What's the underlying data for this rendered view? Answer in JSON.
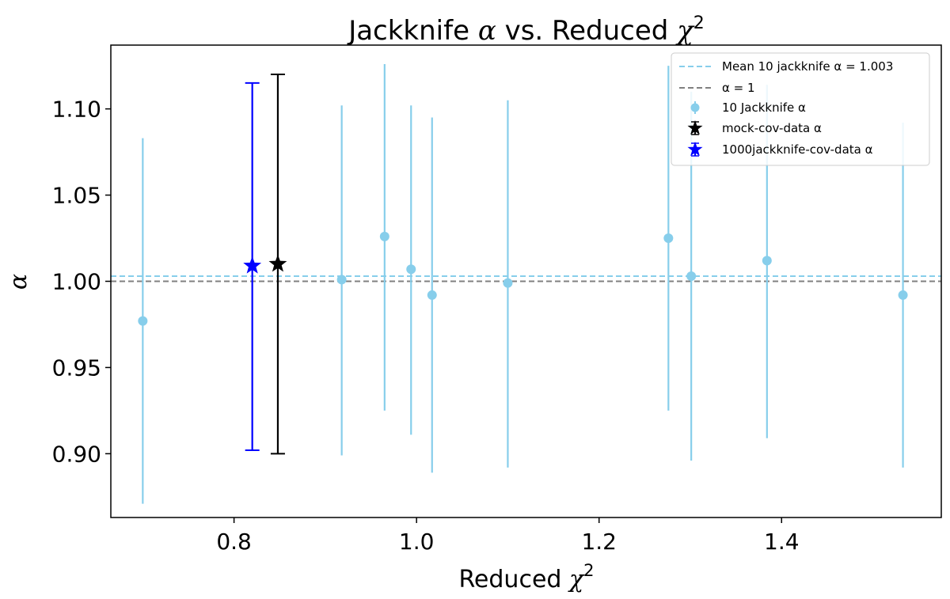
{
  "chart_data": {
    "type": "scatter",
    "title": "Jackknife α vs. Reduced χ²",
    "title_main": "Jackknife ",
    "title_alpha": "α",
    "title_mid": " vs. Reduced ",
    "title_chi": "χ",
    "title_sup": "2",
    "xlabel_main": "Reduced ",
    "xlabel_chi": "χ",
    "xlabel_sup": "2",
    "ylabel": "α",
    "xlim": [
      0.665,
      1.575
    ],
    "ylim": [
      0.863,
      1.137
    ],
    "xticks": [
      0.8,
      1.0,
      1.2,
      1.4
    ],
    "xtick_labels": [
      "0.8",
      "1.0",
      "1.2",
      "1.4"
    ],
    "yticks": [
      0.9,
      0.95,
      1.0,
      1.05,
      1.1
    ],
    "ytick_labels": [
      "0.90",
      "0.95",
      "1.00",
      "1.05",
      "1.10"
    ],
    "hlines": [
      {
        "name": "Mean 10 jackknife α = 1.003",
        "y": 1.003,
        "color": "#87ceeb",
        "dashed": true
      },
      {
        "name": "α = 1",
        "y": 1.0,
        "color": "#808080",
        "dashed": true
      }
    ],
    "series": [
      {
        "name": "10 Jackknife α",
        "color": "#87ceeb",
        "marker": "circle",
        "points": [
          {
            "x": 0.7,
            "y": 0.977,
            "lo": 0.871,
            "hi": 1.083
          },
          {
            "x": 0.918,
            "y": 1.001,
            "lo": 0.899,
            "hi": 1.102
          },
          {
            "x": 0.965,
            "y": 1.026,
            "lo": 0.925,
            "hi": 1.126
          },
          {
            "x": 0.994,
            "y": 1.007,
            "lo": 0.911,
            "hi": 1.102
          },
          {
            "x": 1.017,
            "y": 0.992,
            "lo": 0.889,
            "hi": 1.095
          },
          {
            "x": 1.1,
            "y": 0.999,
            "lo": 0.892,
            "hi": 1.105
          },
          {
            "x": 1.276,
            "y": 1.025,
            "lo": 0.925,
            "hi": 1.125
          },
          {
            "x": 1.301,
            "y": 1.003,
            "lo": 0.896,
            "hi": 1.11
          },
          {
            "x": 1.384,
            "y": 1.012,
            "lo": 0.909,
            "hi": 1.114
          },
          {
            "x": 1.533,
            "y": 0.992,
            "lo": 0.892,
            "hi": 1.092
          }
        ]
      },
      {
        "name": "mock-cov-data α",
        "color": "#000000",
        "marker": "star",
        "capped": true,
        "points": [
          {
            "x": 0.848,
            "y": 1.01,
            "lo": 0.9,
            "hi": 1.12
          }
        ]
      },
      {
        "name": "1000jackknife-cov-data α",
        "color": "#0000ff",
        "marker": "star",
        "capped": true,
        "points": [
          {
            "x": 0.82,
            "y": 1.009,
            "lo": 0.902,
            "hi": 1.115
          }
        ]
      }
    ],
    "legend_position": "top-right"
  }
}
